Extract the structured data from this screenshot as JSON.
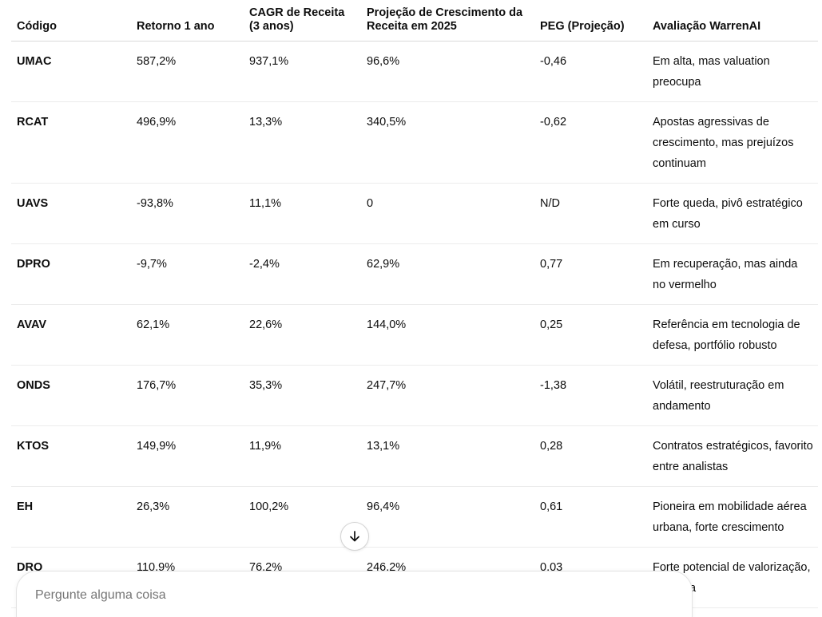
{
  "table": {
    "headers": [
      "Código",
      "Retorno 1 ano",
      "CAGR de Receita (3 anos)",
      "Projeção de Crescimento da Receita em 2025",
      "PEG (Projeção)",
      "Avaliação WarrenAI"
    ],
    "rows": [
      [
        "UMAC",
        "587,2%",
        "937,1%",
        "96,6%",
        "-0,46",
        "Em alta, mas valuation preocupa"
      ],
      [
        "RCAT",
        "496,9%",
        "13,3%",
        "340,5%",
        "-0,62",
        "Apostas agressivas de crescimento, mas prejuízos continuam"
      ],
      [
        "UAVS",
        "-93,8%",
        "11,1%",
        "0",
        "N/D",
        "Forte queda, pivô estratégico em curso"
      ],
      [
        "DPRO",
        "-9,7%",
        "-2,4%",
        "62,9%",
        "0,77",
        "Em recuperação, mas ainda no vermelho"
      ],
      [
        "AVAV",
        "62,1%",
        "22,6%",
        "144,0%",
        "0,25",
        "Referência em tecnologia de defesa, portfólio robusto"
      ],
      [
        "ONDS",
        "176,7%",
        "35,3%",
        "247,7%",
        "-1,38",
        "Volátil, reestruturação em andamento"
      ],
      [
        "KTOS",
        "149,9%",
        "11,9%",
        "13,1%",
        "0,28",
        "Contratos estratégicos, favorito entre analistas"
      ],
      [
        "EH",
        "26,3%",
        "100,2%",
        "96,4%",
        "0,61",
        "Pioneira em mobilidade aérea urbana, forte crescimento"
      ],
      [
        "DRO",
        "110,9%",
        "76,2%",
        "246,2%",
        "0,03",
        "Forte potencial de valorização, esticada"
      ]
    ]
  },
  "scroll_button": {
    "icon": "arrow-down-icon"
  },
  "composer": {
    "placeholder": "Pergunte alguma coisa"
  },
  "colors": {
    "text": "#0d0d0d",
    "placeholder": "#8e8e8e",
    "border": "#ececec"
  }
}
